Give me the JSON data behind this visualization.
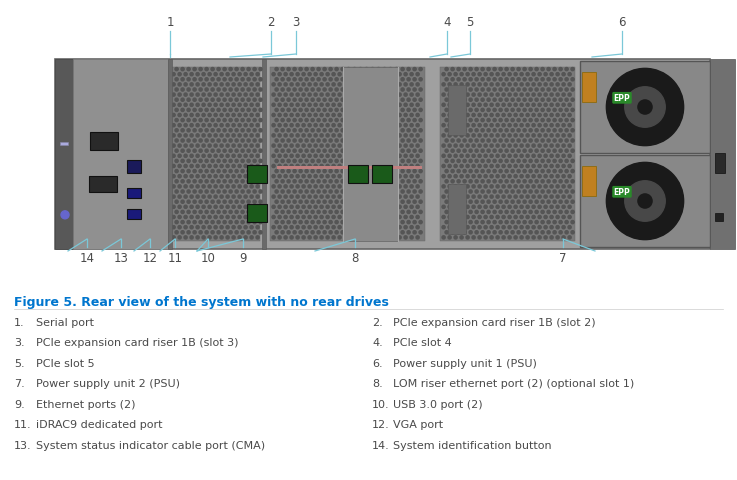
{
  "background_color": "#ffffff",
  "figure_title": "Figure 5. Rear view of the system with no rear drives",
  "figure_title_color": "#0076CE",
  "figure_title_fontsize": 9.0,
  "items_left": [
    {
      "num": "1.",
      "text": "Serial port"
    },
    {
      "num": "3.",
      "text": "PCIe expansion card riser 1B (slot 3)"
    },
    {
      "num": "5.",
      "text": "PCIe slot 5"
    },
    {
      "num": "7.",
      "text": "Power supply unit 2 (PSU)"
    },
    {
      "num": "9.",
      "text": "Ethernet ports (2)"
    },
    {
      "num": "11.",
      "text": "iDRAC9 dedicated port"
    },
    {
      "num": "13.",
      "text": "System status indicator cable port (CMA)"
    }
  ],
  "items_right": [
    {
      "num": "2.",
      "text": "PCIe expansion card riser 1B (slot 2)"
    },
    {
      "num": "4.",
      "text": "PCIe slot 4"
    },
    {
      "num": "6.",
      "text": "Power supply unit 1 (PSU)"
    },
    {
      "num": "8.",
      "text": "LOM riser ethernet port (2) (optional slot 1)"
    },
    {
      "num": "10.",
      "text": "USB 3.0 port (2)"
    },
    {
      "num": "12.",
      "text": "VGA port"
    },
    {
      "num": "14.",
      "text": "System identification button"
    }
  ],
  "callout_line_color": "#7BC8D8",
  "text_color": "#4a4a4a",
  "num_color": "#4a4a4a",
  "item_fontsize": 8.0,
  "callout_fontsize": 8.5,
  "chassis_color": "#a8a8a8",
  "chassis_dark": "#6e6e6e",
  "chassis_mid": "#8e8e8e",
  "mesh_color": "#787878",
  "mesh_dot_color": "#5a5a5a",
  "psu_bg": "#888888",
  "fan_outer": "#2a2a2a",
  "fan_inner": "#505050",
  "epp_color": "#2a8a2a",
  "orange_color": "#c08020"
}
